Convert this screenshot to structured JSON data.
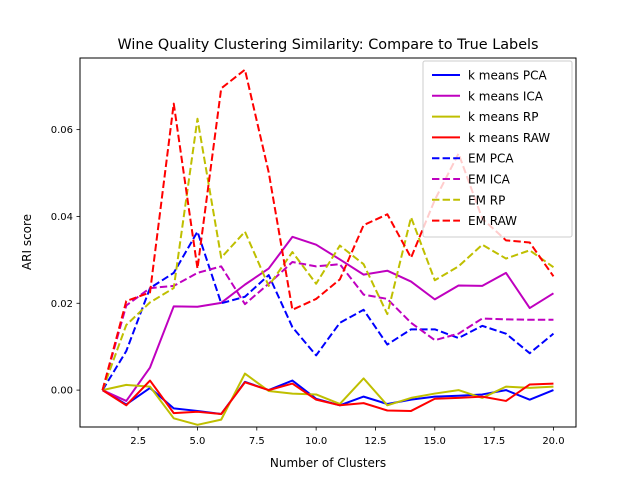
{
  "chart_data": {
    "type": "line",
    "title": "Wine Quality Clustering Similarity: Compare to True Labels",
    "xlabel": "Number of Clusters",
    "ylabel": "ARI score",
    "xlim": [
      0.05,
      20.95
    ],
    "ylim": [
      -0.0085,
      0.0765
    ],
    "xticks": [
      2.5,
      5.0,
      7.5,
      10.0,
      12.5,
      15.0,
      17.5,
      20.0
    ],
    "xtick_labels": [
      "2.5",
      "5.0",
      "7.5",
      "10.0",
      "12.5",
      "15.0",
      "17.5",
      "20.0"
    ],
    "yticks": [
      0.0,
      0.02,
      0.04,
      0.06
    ],
    "ytick_labels": [
      "0.00",
      "0.02",
      "0.04",
      "0.06"
    ],
    "grid": false,
    "legend_position": "top-right",
    "x": [
      1,
      2,
      3,
      4,
      5,
      6,
      7,
      8,
      9,
      10,
      11,
      12,
      13,
      14,
      15,
      16,
      17,
      18,
      19,
      20
    ],
    "series": [
      {
        "name": "k means PCA",
        "color": "#0000ff",
        "style": "solid",
        "values": [
          0.0,
          -0.0033,
          0.0005,
          -0.0042,
          -0.0048,
          -0.0055,
          0.0019,
          0.0,
          0.0022,
          -0.002,
          -0.0035,
          -0.0015,
          -0.0032,
          -0.0022,
          -0.0015,
          -0.0013,
          -0.001,
          0.0,
          -0.0022,
          0.0
        ]
      },
      {
        "name": "k means ICA",
        "color": "#bf00bf",
        "style": "solid",
        "values": [
          0.0,
          -0.0025,
          0.0052,
          0.0193,
          0.0192,
          0.0201,
          0.0243,
          0.028,
          0.0353,
          0.0335,
          0.0301,
          0.0266,
          0.0275,
          0.025,
          0.0209,
          0.0241,
          0.024,
          0.027,
          0.0189,
          0.0223
        ]
      },
      {
        "name": "k means RP",
        "color": "#bfbf00",
        "style": "solid",
        "values": [
          0.0,
          0.0012,
          0.0008,
          -0.0065,
          -0.008,
          -0.0068,
          0.0038,
          -0.0002,
          -0.0008,
          -0.001,
          -0.0032,
          0.0027,
          -0.0035,
          -0.0018,
          -0.0008,
          0.0,
          -0.0018,
          0.0008,
          0.0005,
          0.0008
        ]
      },
      {
        "name": "k means RAW",
        "color": "#ff0000",
        "style": "solid",
        "values": [
          0.0,
          -0.0035,
          0.0022,
          -0.0053,
          -0.005,
          -0.0055,
          0.0018,
          0.0,
          0.0015,
          -0.0022,
          -0.0035,
          -0.003,
          -0.0047,
          -0.0048,
          -0.002,
          -0.0018,
          -0.0015,
          -0.0025,
          0.0013,
          0.0015
        ]
      },
      {
        "name": "EM PCA",
        "color": "#0000ff",
        "style": "dashed",
        "values": [
          0.0,
          0.009,
          0.0235,
          0.027,
          0.0365,
          0.02,
          0.0215,
          0.0265,
          0.0145,
          0.008,
          0.0155,
          0.0185,
          0.0105,
          0.014,
          0.014,
          0.012,
          0.0148,
          0.013,
          0.0085,
          0.013
        ]
      },
      {
        "name": "EM ICA",
        "color": "#bf00bf",
        "style": "dashed",
        "values": [
          0.0,
          0.0195,
          0.0235,
          0.024,
          0.027,
          0.0285,
          0.0198,
          0.0245,
          0.0295,
          0.0285,
          0.029,
          0.022,
          0.021,
          0.0155,
          0.0115,
          0.013,
          0.0165,
          0.0163,
          0.0162,
          0.0162
        ]
      },
      {
        "name": "EM RP",
        "color": "#bfbf00",
        "style": "dashed",
        "values": [
          0.0,
          0.015,
          0.0202,
          0.0235,
          0.0625,
          0.0305,
          0.0365,
          0.024,
          0.0318,
          0.0245,
          0.0333,
          0.029,
          0.0175,
          0.0398,
          0.0253,
          0.0285,
          0.0335,
          0.0303,
          0.0322,
          0.0283
        ]
      },
      {
        "name": "EM RAW",
        "color": "#ff0000",
        "style": "dashed",
        "values": [
          0.0,
          0.0205,
          0.0225,
          0.066,
          0.028,
          0.0695,
          0.0738,
          0.0502,
          0.0185,
          0.021,
          0.0255,
          0.038,
          0.0405,
          0.0305,
          0.0438,
          0.0545,
          0.0395,
          0.0345,
          0.034,
          0.0262
        ]
      }
    ]
  }
}
